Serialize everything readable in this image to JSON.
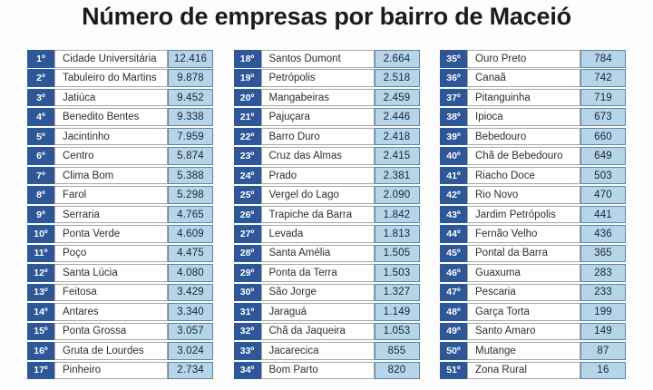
{
  "title": "Número de empresas por bairro de Maceió",
  "layout": {
    "rows_per_column": 17
  },
  "colors": {
    "title_color": "#1b1b1b",
    "rank_bg": "#2d5796",
    "value_bg": "#b7d5e8",
    "value_border": "#5f84a8",
    "name_border": "#a8a8a8",
    "name_text": "#2d2d2d",
    "value_text": "#16243d"
  },
  "chart_data": {
    "type": "table",
    "title": "Número de empresas por bairro de Maceió",
    "rows": [
      {
        "rank": "1º",
        "bairro": "Cidade Universitária",
        "empresas": 12416,
        "empresas_label": "12.416"
      },
      {
        "rank": "2º",
        "bairro": "Tabuleiro do Martins",
        "empresas": 9878,
        "empresas_label": "9.878"
      },
      {
        "rank": "3º",
        "bairro": "Jatiúca",
        "empresas": 9452,
        "empresas_label": "9.452"
      },
      {
        "rank": "4º",
        "bairro": "Benedito Bentes",
        "empresas": 9338,
        "empresas_label": "9.338"
      },
      {
        "rank": "5º",
        "bairro": "Jacintinho",
        "empresas": 7959,
        "empresas_label": "7.959"
      },
      {
        "rank": "6º",
        "bairro": "Centro",
        "empresas": 5874,
        "empresas_label": "5.874"
      },
      {
        "rank": "7º",
        "bairro": "Clima Bom",
        "empresas": 5388,
        "empresas_label": "5.388"
      },
      {
        "rank": "8º",
        "bairro": "Farol",
        "empresas": 5298,
        "empresas_label": "5.298"
      },
      {
        "rank": "9º",
        "bairro": "Serraria",
        "empresas": 4765,
        "empresas_label": "4.765"
      },
      {
        "rank": "10º",
        "bairro": "Ponta Verde",
        "empresas": 4609,
        "empresas_label": "4.609"
      },
      {
        "rank": "11º",
        "bairro": "Poço",
        "empresas": 4475,
        "empresas_label": "4.475"
      },
      {
        "rank": "12º",
        "bairro": "Santa Lúcia",
        "empresas": 4080,
        "empresas_label": "4.080"
      },
      {
        "rank": "13º",
        "bairro": "Feitosa",
        "empresas": 3429,
        "empresas_label": "3.429"
      },
      {
        "rank": "14º",
        "bairro": "Antares",
        "empresas": 3340,
        "empresas_label": "3.340"
      },
      {
        "rank": "15º",
        "bairro": "Ponta Grossa",
        "empresas": 3057,
        "empresas_label": "3.057"
      },
      {
        "rank": "16º",
        "bairro": "Gruta de Lourdes",
        "empresas": 3024,
        "empresas_label": "3.024"
      },
      {
        "rank": "17º",
        "bairro": "Pinheiro",
        "empresas": 2734,
        "empresas_label": "2.734"
      },
      {
        "rank": "18º",
        "bairro": "Santos Dumont",
        "empresas": 2664,
        "empresas_label": "2.664"
      },
      {
        "rank": "19º",
        "bairro": "Petrópolis",
        "empresas": 2518,
        "empresas_label": "2.518"
      },
      {
        "rank": "20º",
        "bairro": "Mangabeiras",
        "empresas": 2459,
        "empresas_label": "2.459"
      },
      {
        "rank": "21º",
        "bairro": "Pajuçara",
        "empresas": 2446,
        "empresas_label": "2.446"
      },
      {
        "rank": "22º",
        "bairro": "Barro Duro",
        "empresas": 2418,
        "empresas_label": "2.418"
      },
      {
        "rank": "23º",
        "bairro": "Cruz das Almas",
        "empresas": 2415,
        "empresas_label": "2.415"
      },
      {
        "rank": "24º",
        "bairro": "Prado",
        "empresas": 2381,
        "empresas_label": "2.381"
      },
      {
        "rank": "25º",
        "bairro": "Vergel do Lago",
        "empresas": 2090,
        "empresas_label": "2.090"
      },
      {
        "rank": "26º",
        "bairro": "Trapiche da Barra",
        "empresas": 1842,
        "empresas_label": "1.842"
      },
      {
        "rank": "27º",
        "bairro": "Levada",
        "empresas": 1813,
        "empresas_label": "1.813"
      },
      {
        "rank": "28º",
        "bairro": "Santa Amélia",
        "empresas": 1505,
        "empresas_label": "1.505"
      },
      {
        "rank": "29º",
        "bairro": "Ponta da Terra",
        "empresas": 1503,
        "empresas_label": "1.503"
      },
      {
        "rank": "30º",
        "bairro": "São Jorge",
        "empresas": 1327,
        "empresas_label": "1.327"
      },
      {
        "rank": "31º",
        "bairro": "Jaraguá",
        "empresas": 1149,
        "empresas_label": "1.149"
      },
      {
        "rank": "32º",
        "bairro": "Chã da Jaqueira",
        "empresas": 1053,
        "empresas_label": "1.053"
      },
      {
        "rank": "33º",
        "bairro": "Jacarecica",
        "empresas": 855,
        "empresas_label": "855"
      },
      {
        "rank": "34º",
        "bairro": "Bom Parto",
        "empresas": 820,
        "empresas_label": "820"
      },
      {
        "rank": "35º",
        "bairro": "Ouro Preto",
        "empresas": 784,
        "empresas_label": "784"
      },
      {
        "rank": "36º",
        "bairro": "Canaã",
        "empresas": 742,
        "empresas_label": "742"
      },
      {
        "rank": "37º",
        "bairro": "Pitanguinha",
        "empresas": 719,
        "empresas_label": "719"
      },
      {
        "rank": "38º",
        "bairro": "Ipioca",
        "empresas": 673,
        "empresas_label": "673"
      },
      {
        "rank": "39º",
        "bairro": "Bebedouro",
        "empresas": 660,
        "empresas_label": "660"
      },
      {
        "rank": "40º",
        "bairro": "Chã de Bebedouro",
        "empresas": 649,
        "empresas_label": "649"
      },
      {
        "rank": "41º",
        "bairro": "Riacho Doce",
        "empresas": 503,
        "empresas_label": "503"
      },
      {
        "rank": "42º",
        "bairro": "Rio Novo",
        "empresas": 470,
        "empresas_label": "470"
      },
      {
        "rank": "43º",
        "bairro": "Jardim Petrópolis",
        "empresas": 441,
        "empresas_label": "441"
      },
      {
        "rank": "44º",
        "bairro": "Fernão Velho",
        "empresas": 436,
        "empresas_label": "436"
      },
      {
        "rank": "45º",
        "bairro": "Pontal da Barra",
        "empresas": 365,
        "empresas_label": "365"
      },
      {
        "rank": "46º",
        "bairro": "Guaxuma",
        "empresas": 283,
        "empresas_label": "283"
      },
      {
        "rank": "47º",
        "bairro": "Pescaria",
        "empresas": 233,
        "empresas_label": "233"
      },
      {
        "rank": "48º",
        "bairro": "Garça Torta",
        "empresas": 199,
        "empresas_label": "199"
      },
      {
        "rank": "49º",
        "bairro": "Santo Amaro",
        "empresas": 149,
        "empresas_label": "149"
      },
      {
        "rank": "50º",
        "bairro": "Mutange",
        "empresas": 87,
        "empresas_label": "87"
      },
      {
        "rank": "51º",
        "bairro": "Zona Rural",
        "empresas": 16,
        "empresas_label": "16"
      }
    ]
  }
}
